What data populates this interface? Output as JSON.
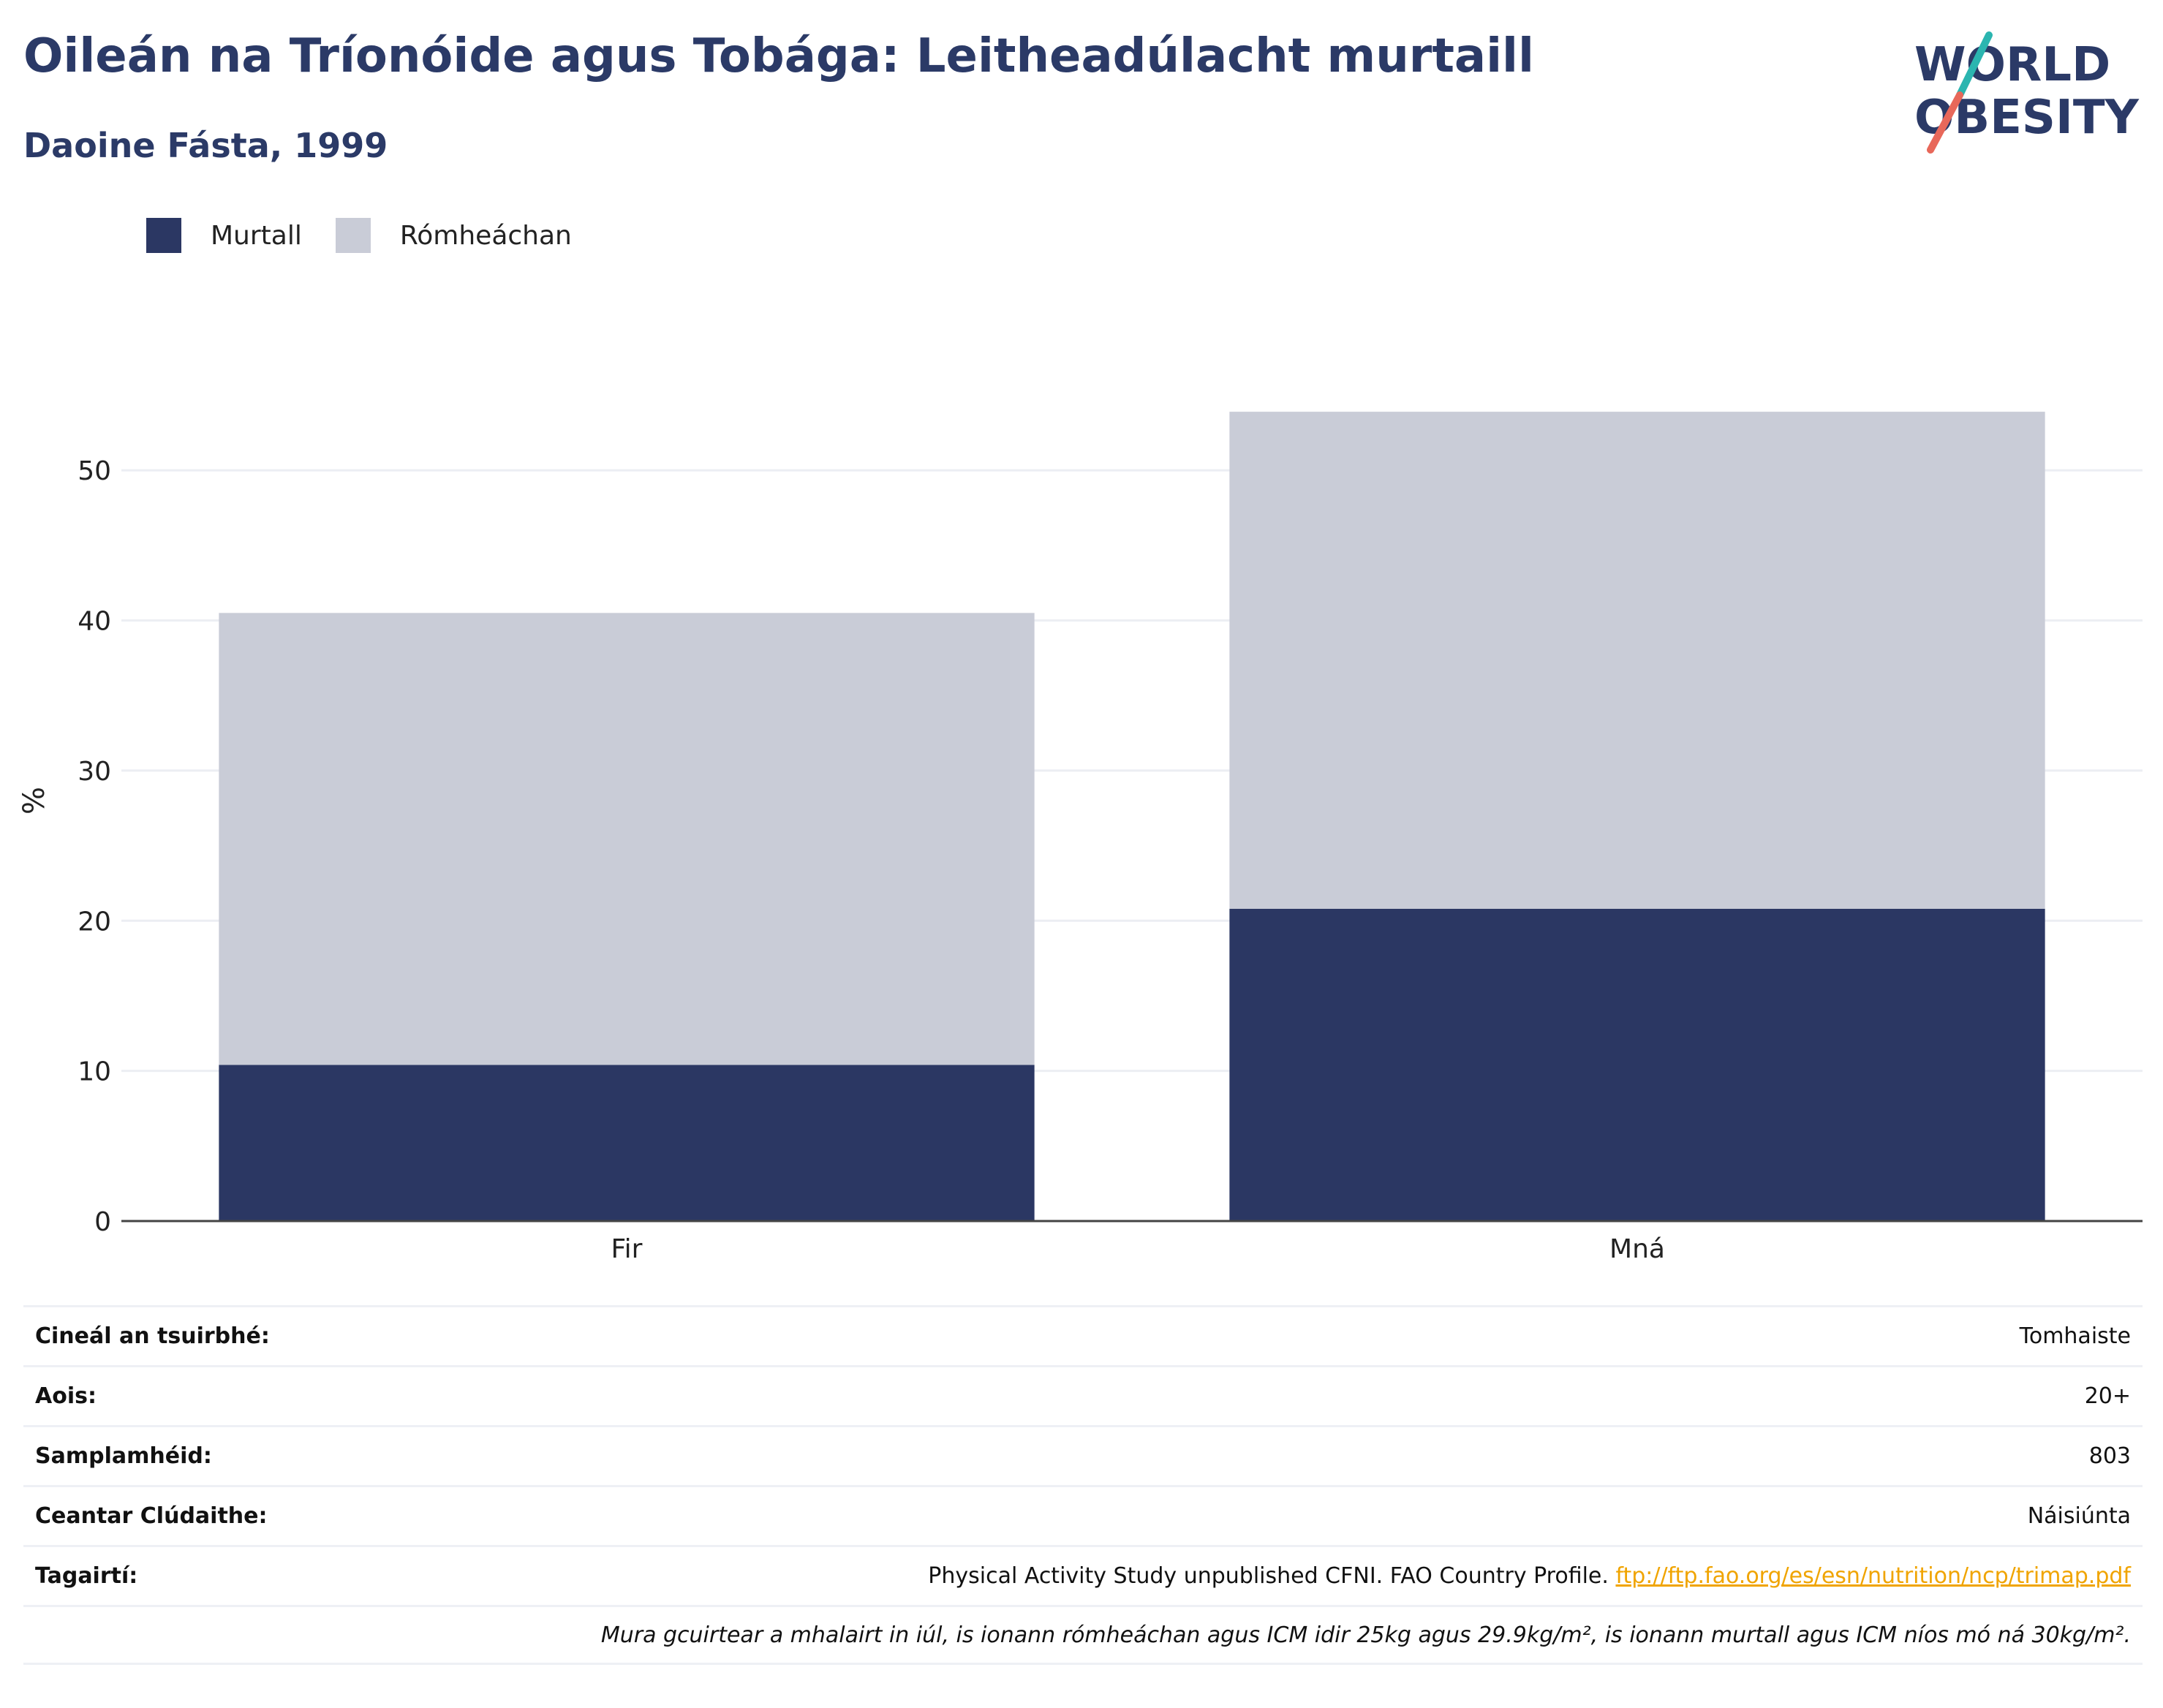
{
  "header": {
    "title": "Oileán na Tríonóide agus Tobága: Leitheadúlacht murtaill",
    "subtitle": "Daoine Fásta, 1999"
  },
  "logo": {
    "line1": "WORLD",
    "line2": "OBESITY"
  },
  "colors": {
    "obesity": "#2b3763",
    "overweight": "#c9ccd7",
    "title": "#2b3a67",
    "link": "#f0a400"
  },
  "chart_data": {
    "type": "bar",
    "stacked": true,
    "categories": [
      "Fir",
      "Mná"
    ],
    "series": [
      {
        "name": "Murtall",
        "values": [
          10.4,
          20.8
        ]
      },
      {
        "name": "Rómheáchan",
        "values": [
          30.1,
          33.1
        ]
      }
    ],
    "ylabel": "%",
    "ylim": [
      0,
      56
    ],
    "yticks": [
      0,
      10,
      20,
      30,
      40,
      50
    ],
    "grid": true,
    "legend_position": "top-left"
  },
  "info": [
    {
      "key": "Cineál an tsuirbhé:",
      "value": "Tomhaiste"
    },
    {
      "key": "Aois:",
      "value": "20+"
    },
    {
      "key": "Samplamhéid:",
      "value": "803"
    },
    {
      "key": "Ceantar Clúdaithe:",
      "value": "Náisiúnta"
    }
  ],
  "reference": {
    "key": "Tagairtí:",
    "text": "Physical Activity Study unpublished CFNI. FAO Country Profile. ",
    "link": "ftp://ftp.fao.org/es/esn/nutrition/ncp/trimap.pdf"
  },
  "note": "Mura gcuirtear a mhalairt in iúl, is ionann rómheáchan agus ICM idir 25kg agus 29.9kg/m², is ionann murtall agus ICM níos mó ná 30kg/m²."
}
